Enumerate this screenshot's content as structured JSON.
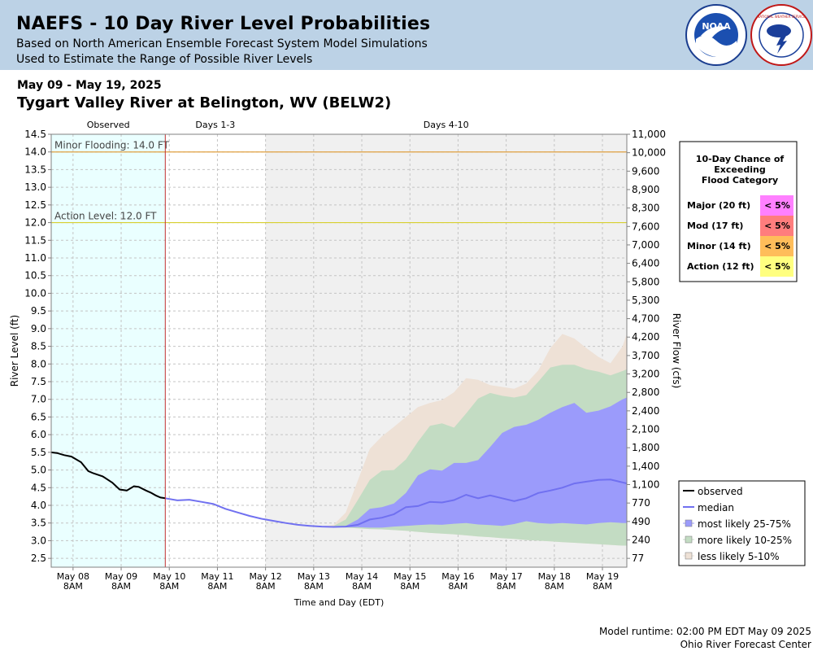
{
  "header": {
    "title": "NAEFS - 10 Day River Level Probabilities",
    "subtitle1": "Based on North American Ensemble Forecast System Model Simulations",
    "subtitle2": "Used to Estimate the Range of Possible River Levels"
  },
  "date_range": "May 09 - May 19, 2025",
  "station": "Tygart Valley River at Belington, WV (BELW2)",
  "footer": {
    "runtime": "Model runtime: 02:00 PM EDT May 09 2025",
    "center": "Ohio River Forecast Center"
  },
  "logos": {
    "noaa_text": "NOAA",
    "nws_text": "NATIONAL WEATHER SERVICE"
  },
  "colors": {
    "observed_shade": "#eaffff",
    "forecast_shade": "#f0f0f0",
    "minor_line": "#e0a040",
    "action_line": "#d8d030",
    "median": "#7070f0",
    "band_25_75": "#9b9bfb",
    "band_10_25": "#c3dcc3",
    "band_5_10": "#eee1d6"
  },
  "chart_data": {
    "type": "area",
    "title": "",
    "xlabel": "Time and Day (EDT)",
    "ylabel": "River Level (ft)",
    "y2label": "River Flow (cfs)",
    "ylim": [
      2.25,
      14.5
    ],
    "x_unit": "days since May 07 2025 00:00",
    "xlim": [
      0.88,
      12.84
    ],
    "grid": true,
    "sections": [
      "Observed",
      "Days 1-3",
      "Days 4-10"
    ],
    "yticks": [
      2.5,
      3.0,
      3.5,
      4.0,
      4.5,
      5.0,
      5.5,
      6.0,
      6.5,
      7.0,
      7.5,
      8.0,
      8.5,
      9.0,
      9.5,
      10.0,
      10.5,
      11.0,
      11.5,
      12.0,
      12.5,
      13.0,
      13.5,
      14.0,
      14.5
    ],
    "y2ticks": [
      "77",
      "240",
      "490",
      "770",
      "1,100",
      "1,400",
      "1,800",
      "2,100",
      "2,400",
      "2,800",
      "3,200",
      "3,700",
      "4,200",
      "4,700",
      "5,300",
      "5,800",
      "6,400",
      "7,000",
      "7,600",
      "8,300",
      "8,900",
      "9,600",
      "10,000",
      "11,000"
    ],
    "xticks": [
      {
        "line1": "May 08",
        "line2": "8AM"
      },
      {
        "line1": "May 09",
        "line2": "8AM"
      },
      {
        "line1": "May 10",
        "line2": "8AM"
      },
      {
        "line1": "May 11",
        "line2": "8AM"
      },
      {
        "line1": "May 12",
        "line2": "8AM"
      },
      {
        "line1": "May 13",
        "line2": "8AM"
      },
      {
        "line1": "May 14",
        "line2": "8AM"
      },
      {
        "line1": "May 15",
        "line2": "8AM"
      },
      {
        "line1": "May 16",
        "line2": "8AM"
      },
      {
        "line1": "May 17",
        "line2": "8AM"
      },
      {
        "line1": "May 18",
        "line2": "8AM"
      },
      {
        "line1": "May 19",
        "line2": "8AM"
      }
    ],
    "thresholds": [
      {
        "name": "Minor Flooding",
        "label": "Minor Flooding: 14.0 FT",
        "value": 14.0
      },
      {
        "name": "Action Level",
        "label": "Action Level: 12.0 FT",
        "value": 12.0
      }
    ],
    "observed": {
      "x": [
        0.88,
        1.0,
        1.15,
        1.3,
        1.5,
        1.65,
        1.75,
        1.95,
        2.15,
        2.3,
        2.45,
        2.6,
        2.7,
        2.85,
        2.95,
        3.05,
        3.15,
        3.25
      ],
      "y": [
        5.5,
        5.48,
        5.42,
        5.38,
        5.22,
        4.97,
        4.91,
        4.82,
        4.64,
        4.45,
        4.42,
        4.54,
        4.52,
        4.42,
        4.36,
        4.28,
        4.22,
        4.2
      ]
    },
    "forecast": {
      "x": [
        3.25,
        3.5,
        3.75,
        4.0,
        4.25,
        4.5,
        4.75,
        5.0,
        5.25,
        5.5,
        5.75,
        6.0,
        6.25,
        6.5,
        6.75,
        7.0,
        7.25,
        7.5,
        7.75,
        8.0,
        8.25,
        8.5,
        8.75,
        9.0,
        9.25,
        9.5,
        9.75,
        10.0,
        10.25,
        10.5,
        10.75,
        11.0,
        11.25,
        11.5,
        11.75,
        12.0,
        12.25,
        12.5,
        12.75,
        12.84
      ],
      "median": [
        4.2,
        4.14,
        4.16,
        4.1,
        4.04,
        3.9,
        3.8,
        3.7,
        3.62,
        3.56,
        3.5,
        3.45,
        3.42,
        3.4,
        3.39,
        3.4,
        3.45,
        3.6,
        3.65,
        3.75,
        3.95,
        3.98,
        4.1,
        4.08,
        4.15,
        4.3,
        4.2,
        4.28,
        4.2,
        4.12,
        4.2,
        4.35,
        4.42,
        4.5,
        4.62,
        4.67,
        4.72,
        4.73,
        4.65,
        4.62
      ],
      "p25": [
        4.2,
        4.14,
        4.16,
        4.1,
        4.04,
        3.9,
        3.8,
        3.7,
        3.62,
        3.56,
        3.5,
        3.45,
        3.42,
        3.4,
        3.39,
        3.38,
        3.38,
        3.37,
        3.37,
        3.4,
        3.42,
        3.44,
        3.46,
        3.45,
        3.48,
        3.5,
        3.46,
        3.44,
        3.42,
        3.47,
        3.55,
        3.5,
        3.48,
        3.5,
        3.48,
        3.46,
        3.5,
        3.52,
        3.5,
        3.5
      ],
      "p75": [
        4.2,
        4.14,
        4.16,
        4.1,
        4.04,
        3.9,
        3.8,
        3.7,
        3.62,
        3.56,
        3.5,
        3.45,
        3.42,
        3.4,
        3.39,
        3.42,
        3.6,
        3.9,
        3.95,
        4.05,
        4.35,
        4.85,
        5.02,
        4.98,
        5.2,
        5.2,
        5.28,
        5.65,
        6.05,
        6.22,
        6.28,
        6.42,
        6.62,
        6.78,
        6.9,
        6.62,
        6.68,
        6.8,
        7.0,
        7.05
      ],
      "p10": [
        4.2,
        4.14,
        4.16,
        4.1,
        4.04,
        3.9,
        3.8,
        3.7,
        3.62,
        3.56,
        3.5,
        3.45,
        3.42,
        3.4,
        3.39,
        3.37,
        3.35,
        3.33,
        3.32,
        3.3,
        3.28,
        3.25,
        3.22,
        3.2,
        3.18,
        3.15,
        3.12,
        3.1,
        3.07,
        3.05,
        3.02,
        3.0,
        2.98,
        2.96,
        2.94,
        2.92,
        2.9,
        2.88,
        2.86,
        2.86
      ],
      "p90": [
        4.2,
        4.14,
        4.16,
        4.1,
        4.04,
        3.9,
        3.8,
        3.7,
        3.62,
        3.56,
        3.5,
        3.45,
        3.42,
        3.4,
        3.42,
        3.6,
        4.15,
        4.72,
        4.98,
        5.0,
        5.3,
        5.8,
        6.25,
        6.32,
        6.2,
        6.6,
        7.02,
        7.18,
        7.1,
        7.05,
        7.12,
        7.5,
        7.9,
        7.98,
        7.98,
        7.85,
        7.78,
        7.68,
        7.8,
        7.85
      ],
      "p5": [
        4.2,
        4.14,
        4.16,
        4.1,
        4.04,
        3.9,
        3.8,
        3.7,
        3.62,
        3.56,
        3.5,
        3.45,
        3.42,
        3.4,
        3.45,
        3.8,
        4.7,
        5.6,
        5.95,
        6.22,
        6.5,
        6.78,
        6.9,
        6.98,
        7.2,
        7.6,
        7.55,
        7.4,
        7.35,
        7.3,
        7.45,
        7.82,
        8.45,
        8.85,
        8.72,
        8.45,
        8.2,
        8.02,
        8.5,
        8.85
      ]
    },
    "legend": {
      "placement": "bottom-right",
      "entries": [
        {
          "label": "observed",
          "color": "#000000",
          "kind": "line"
        },
        {
          "label": "median",
          "color": "#7070f0",
          "kind": "line"
        },
        {
          "label": "most likely 25-75%",
          "color": "#9b9bfb",
          "kind": "box"
        },
        {
          "label": "more likely 10-25%",
          "color": "#c3dcc3",
          "kind": "box"
        },
        {
          "label": "less likely 5-10%",
          "color": "#eee1d6",
          "kind": "box"
        }
      ]
    },
    "exceedance": {
      "title_lines": [
        "10-Day Chance of",
        "Exceeding",
        "Flood Category"
      ],
      "rows": [
        {
          "label": "Major (20 ft)",
          "value": "< 5%",
          "color": "#ff80ff"
        },
        {
          "label": "Mod (17 ft)",
          "value": "< 5%",
          "color": "#ff7d7d"
        },
        {
          "label": "Minor (14 ft)",
          "value": "< 5%",
          "color": "#ffbd5a"
        },
        {
          "label": "Action (12 ft)",
          "value": "< 5%",
          "color": "#ffff80"
        }
      ]
    }
  }
}
